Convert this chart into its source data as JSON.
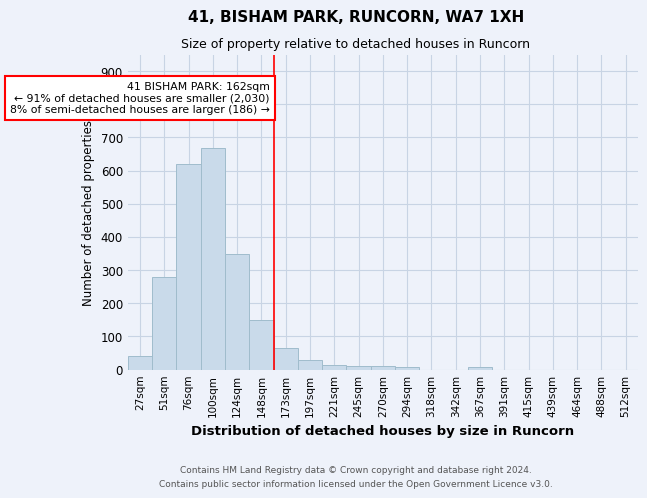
{
  "title": "41, BISHAM PARK, RUNCORN, WA7 1XH",
  "subtitle": "Size of property relative to detached houses in Runcorn",
  "xlabel": "Distribution of detached houses by size in Runcorn",
  "ylabel": "Number of detached properties",
  "footer1": "Contains HM Land Registry data © Crown copyright and database right 2024.",
  "footer2": "Contains public sector information licensed under the Open Government Licence v3.0.",
  "categories": [
    "27sqm",
    "51sqm",
    "76sqm",
    "100sqm",
    "124sqm",
    "148sqm",
    "173sqm",
    "197sqm",
    "221sqm",
    "245sqm",
    "270sqm",
    "294sqm",
    "318sqm",
    "342sqm",
    "367sqm",
    "391sqm",
    "415sqm",
    "439sqm",
    "464sqm",
    "488sqm",
    "512sqm"
  ],
  "values": [
    42,
    278,
    620,
    668,
    348,
    148,
    65,
    30,
    15,
    12,
    10,
    8,
    0,
    0,
    8,
    0,
    0,
    0,
    0,
    0,
    0
  ],
  "bar_color": "#c9daea",
  "bar_edge_color": "#a0bccc",
  "red_line_index": 5.5,
  "annotation_text": "  41 BISHAM PARK: 162sqm\n← 91% of detached houses are smaller (2,030)\n8% of semi-detached houses are larger (186) →",
  "annotation_box_color": "white",
  "annotation_box_edgecolor": "red",
  "ylim": [
    0,
    950
  ],
  "yticks": [
    0,
    100,
    200,
    300,
    400,
    500,
    600,
    700,
    800,
    900
  ],
  "grid_color": "#c8d4e4",
  "background_color": "#eef2fa"
}
